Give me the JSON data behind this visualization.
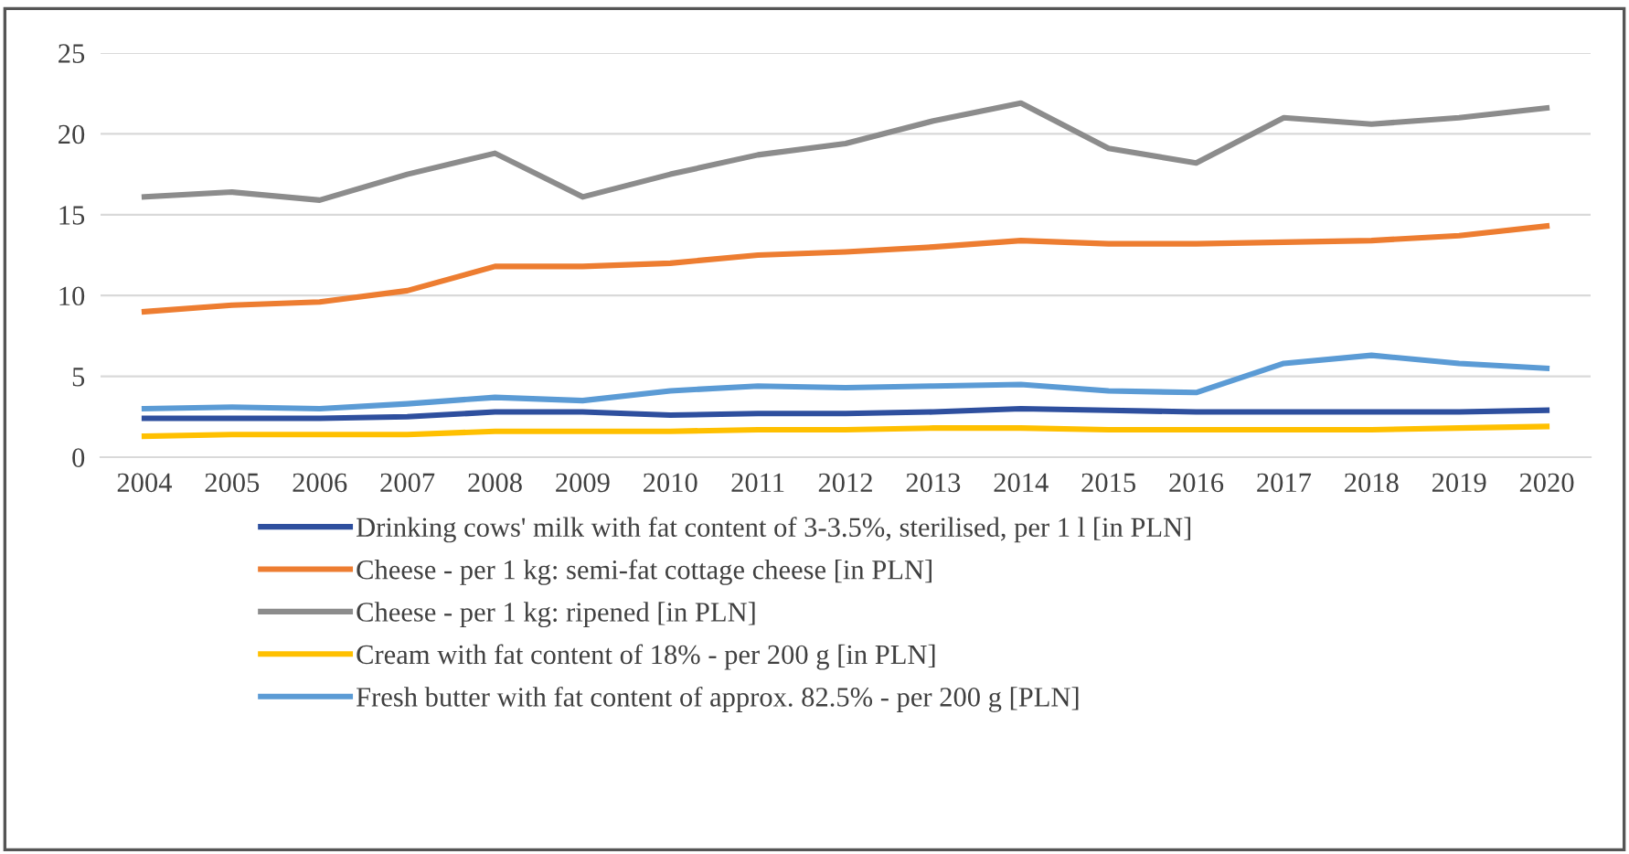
{
  "chart_data": {
    "type": "line",
    "categories": [
      "2004",
      "2005",
      "2006",
      "2007",
      "2008",
      "2009",
      "2010",
      "2011",
      "2012",
      "2013",
      "2014",
      "2015",
      "2016",
      "2017",
      "2018",
      "2019",
      "2020"
    ],
    "series": [
      {
        "name": "Drinking cows' milk with fat content of 3-3.5%, sterilised, per 1 l [in PLN]",
        "color": "#2e4f9e",
        "values": [
          2.4,
          2.4,
          2.4,
          2.5,
          2.8,
          2.8,
          2.6,
          2.7,
          2.7,
          2.8,
          3.0,
          2.9,
          2.8,
          2.8,
          2.8,
          2.8,
          2.9
        ]
      },
      {
        "name": "Cheese - per 1 kg: semi-fat cottage cheese [in PLN]",
        "color": "#ed7d31",
        "values": [
          9.0,
          9.4,
          9.6,
          10.3,
          11.8,
          11.8,
          12.0,
          12.5,
          12.7,
          13.0,
          13.4,
          13.2,
          13.2,
          13.3,
          13.4,
          13.7,
          14.3
        ]
      },
      {
        "name": "Cheese - per 1 kg: ripened [in PLN]",
        "color": "#8c8c8c",
        "values": [
          16.1,
          16.4,
          15.9,
          17.5,
          18.8,
          16.1,
          17.5,
          18.7,
          19.4,
          20.8,
          21.9,
          19.1,
          18.2,
          21.0,
          20.6,
          21.0,
          21.6
        ]
      },
      {
        "name": "Cream with fat content of 18% - per 200 g [in PLN]",
        "color": "#ffc000",
        "values": [
          1.3,
          1.4,
          1.4,
          1.4,
          1.6,
          1.6,
          1.6,
          1.7,
          1.7,
          1.8,
          1.8,
          1.7,
          1.7,
          1.7,
          1.7,
          1.8,
          1.9
        ]
      },
      {
        "name": "Fresh butter with fat content of approx. 82.5% - per 200 g [PLN]",
        "color": "#5b9bd5",
        "values": [
          3.0,
          3.1,
          3.0,
          3.3,
          3.7,
          3.5,
          4.1,
          4.4,
          4.3,
          4.4,
          4.5,
          4.1,
          4.0,
          5.8,
          6.3,
          5.8,
          5.5
        ]
      }
    ],
    "ylim": [
      0,
      25
    ],
    "yticks": [
      0,
      5,
      10,
      15,
      20,
      25
    ],
    "grid": "y",
    "legend": "bottom",
    "marker": "none",
    "line_style": "solid"
  }
}
